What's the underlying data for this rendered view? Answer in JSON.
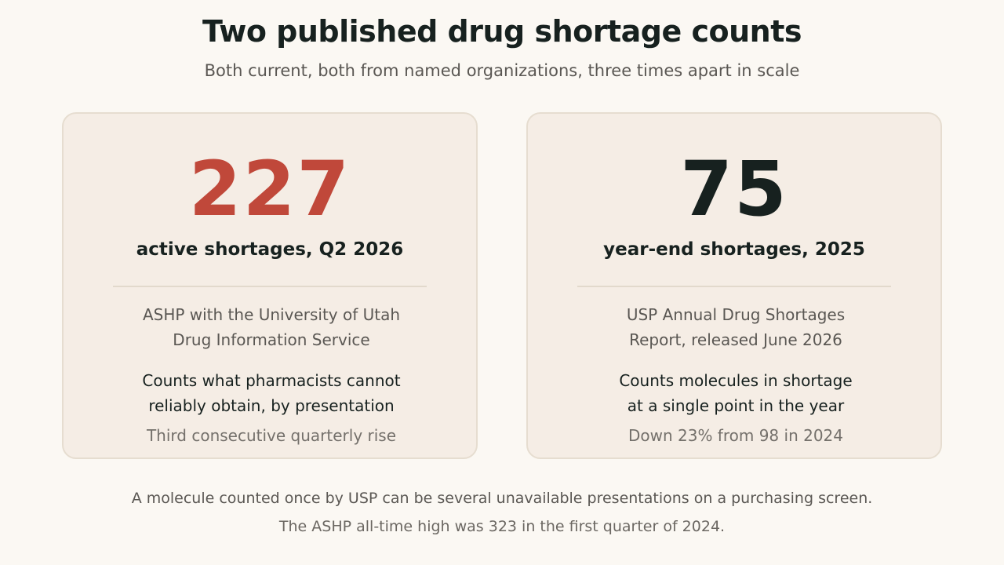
{
  "header": {
    "title": "Two published drug shortage counts",
    "subtitle": "Both current, both from named organizations, three times apart in scale"
  },
  "cards": [
    {
      "number": "227",
      "number_color": "#c0483a",
      "label": "active shortages, Q2 2026",
      "source_line1": "ASHP with the University of Utah",
      "source_line2": "Drug Information Service",
      "method_line1": "Counts what pharmacists cannot",
      "method_line2": "reliably obtain, by presentation",
      "trend": "Third consecutive quarterly rise"
    },
    {
      "number": "75",
      "number_color": "#17211f",
      "label": "year-end shortages, 2025",
      "source_line1": "USP Annual Drug Shortages",
      "source_line2": "Report, released June 2026",
      "method_line1": "Counts molecules in shortage",
      "method_line2": "at a single point in the year",
      "trend": "Down 23% from 98 in 2024"
    }
  ],
  "footer": {
    "note1": "A molecule counted once by USP can be several unavailable presentations on a purchasing screen.",
    "note2": "The ASHP all-time high was 323 in the first quarter of 2024."
  }
}
